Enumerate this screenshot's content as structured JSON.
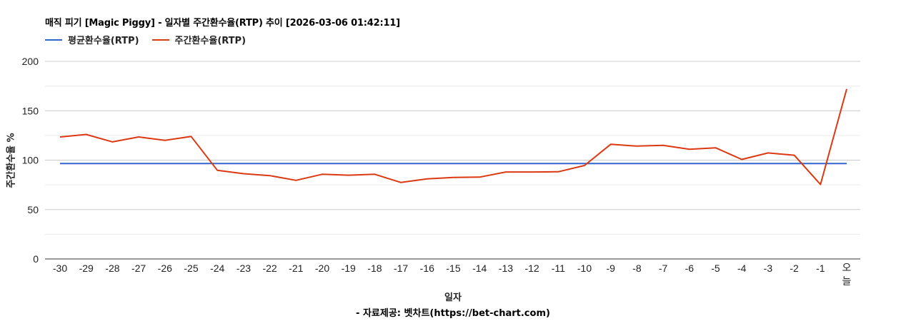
{
  "header": {
    "title": "매직 피기 [Magic Piggy] - 일자별 주간환수율(RTP) 추이 [2026-03-06 01:42:11]"
  },
  "legend": [
    {
      "label": "평균환수율(RTP)",
      "color": "#3366cc"
    },
    {
      "label": "주간환수율(RTP)",
      "color": "#dc3912"
    }
  ],
  "axes": {
    "xlabel": "일자",
    "ylabel": "주간환수율 %",
    "source": "- 자료제공: 벳차트(https://bet-chart.com)"
  },
  "chart_data": {
    "type": "line",
    "title": "매직 피기 [Magic Piggy] - 일자별 주간환수율(RTP) 추이 [2026-03-06 01:42:11]",
    "xlabel": "일자",
    "ylabel": "주간환수율 %",
    "ylim": [
      0,
      200
    ],
    "yticks": [
      0,
      50,
      100,
      150,
      200
    ],
    "grid": true,
    "legend_position": "top-left",
    "categories": [
      "-30",
      "-29",
      "-28",
      "-27",
      "-26",
      "-25",
      "-24",
      "-23",
      "-22",
      "-21",
      "-20",
      "-19",
      "-18",
      "-17",
      "-16",
      "-15",
      "-14",
      "-13",
      "-12",
      "-11",
      "-10",
      "-9",
      "-8",
      "-7",
      "-6",
      "-5",
      "-4",
      "-3",
      "-2",
      "-1",
      "오늘"
    ],
    "series": [
      {
        "name": "평균환수율(RTP)",
        "color": "#3366cc",
        "values": [
          96.5,
          96.5,
          96.5,
          96.5,
          96.5,
          96.5,
          96.5,
          96.5,
          96.5,
          96.5,
          96.5,
          96.5,
          96.5,
          96.5,
          96.5,
          96.5,
          96.5,
          96.5,
          96.5,
          96.5,
          96.5,
          96.5,
          96.5,
          96.5,
          96.5,
          96.5,
          96.5,
          96.5,
          96.5,
          96.5,
          96.5
        ]
      },
      {
        "name": "주간환수율(RTP)",
        "color": "#dc3912",
        "values": [
          123.5,
          126,
          118.5,
          123.5,
          120,
          124,
          89.7,
          86.3,
          84.3,
          79.6,
          85.7,
          84.8,
          85.7,
          77.4,
          81.1,
          82.5,
          82.8,
          88,
          88,
          88.2,
          94.6,
          116,
          114.2,
          115,
          111,
          112.5,
          100.7,
          107.3,
          105,
          75.4,
          172
        ]
      }
    ]
  }
}
